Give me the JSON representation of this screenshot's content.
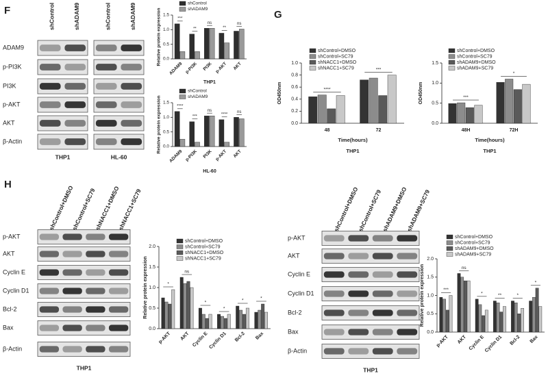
{
  "panel_labels": [
    "F",
    "G",
    "H"
  ],
  "blots": [
    {
      "columns": [
        "shControl",
        "shADAM9",
        "shControl",
        "shADAM9"
      ],
      "rows": [
        "ADAM9",
        "p-PI3K",
        "PI3K",
        "p-AKT",
        "AKT",
        "β-Actin"
      ],
      "cell_lines": [
        "THP1",
        "HL-60"
      ]
    },
    {
      "columns": [
        "shControl+DMSO",
        "shControl+SC79",
        "shNACC1+DMSO",
        "shNACC1+SC79"
      ],
      "rows": [
        "p-AKT",
        "AKT",
        "Cyclin E",
        "Cyclin D1",
        "Bcl-2",
        "Bax",
        "β-Actin"
      ],
      "cell_lines": [
        "THP1"
      ]
    },
    {
      "columns": [
        "shControl+DMSO",
        "shControl+SC79",
        "shADAM9+DMSO",
        "shADAM9+SC79"
      ],
      "rows": [
        "p-AKT",
        "AKT",
        "Cyclin E",
        "Cyclin D1",
        "Bcl-2",
        "Bax",
        "β-Actin"
      ],
      "cell_lines": [
        "THP1"
      ]
    }
  ],
  "chart_data": [
    {
      "type": "bar",
      "title": "THP1",
      "y_label": "Relative protein expression",
      "categories": [
        "ADAM9",
        "p-PI3K",
        "PI3K",
        "p-AKT",
        "AKT"
      ],
      "series": [
        {
          "name": "shControl",
          "color": "#2e2e2e",
          "values": [
            1.2,
            0.85,
            1.05,
            0.88,
            0.95
          ]
        },
        {
          "name": "shADAM9",
          "color": "#9a9a9a",
          "values": [
            0.25,
            0.25,
            1.05,
            0.55,
            1.02
          ]
        }
      ],
      "annotations": [
        "***",
        "**",
        "ns",
        "**",
        "ns"
      ],
      "ylim": [
        0,
        1.5
      ],
      "yticks": [
        {
          "value": 0,
          "label": "0.0"
        },
        0.5,
        {
          "value": 1,
          "label": "1.0"
        },
        1.5
      ]
    },
    {
      "type": "bar",
      "title": "HL-60",
      "y_label": "Relative protein expression",
      "categories": [
        "ADAM9",
        "p-PI3K",
        "PI3K",
        "p-AKT",
        "AKT"
      ],
      "series": [
        {
          "name": "shControl",
          "color": "#2e2e2e",
          "values": [
            1.2,
            0.85,
            1.05,
            0.92,
            1.0
          ]
        },
        {
          "name": "shADAM9",
          "color": "#9a9a9a",
          "values": [
            0.25,
            0.15,
            1.05,
            0.15,
            0.95
          ]
        }
      ],
      "annotations": [
        "****",
        "***",
        "ns",
        "****",
        "ns"
      ],
      "ylim": [
        0,
        1.5
      ],
      "yticks": [
        {
          "value": 0,
          "label": "0.0"
        },
        0.5,
        {
          "value": 1,
          "label": "1.0"
        },
        1.5
      ]
    },
    {
      "type": "bar",
      "title": "THP1",
      "y_label": "OD450nm",
      "x_label": "Time(hours)",
      "categories": [
        "48",
        "72"
      ],
      "series": [
        {
          "name": "shControl+DMSO",
          "color": "#333333",
          "values": [
            0.44,
            0.72
          ]
        },
        {
          "name": "shControl+SC79",
          "color": "#8c8c8c",
          "values": [
            0.47,
            0.75
          ]
        },
        {
          "name": "shNACC1+DMSO",
          "color": "#5a5a5a",
          "values": [
            0.24,
            0.46
          ]
        },
        {
          "name": "shNACC1+SC79",
          "color": "#c8c8c8",
          "values": [
            0.46,
            0.8
          ]
        }
      ],
      "annotations": [
        "****",
        "***"
      ],
      "ylim": [
        0,
        1
      ],
      "yticks": [
        {
          "value": 0,
          "label": "0.0"
        },
        0.2,
        0.4,
        0.6,
        0.8,
        {
          "value": 1,
          "label": "1.0"
        }
      ]
    },
    {
      "type": "bar",
      "title": "THP1",
      "y_label": "OD450nm",
      "x_label": "Time(hours)",
      "categories": [
        "48H",
        "72H"
      ],
      "series": [
        {
          "name": "shControl+DMSO",
          "color": "#333333",
          "values": [
            0.49,
            1.02
          ]
        },
        {
          "name": "shControl+SC79",
          "color": "#8c8c8c",
          "values": [
            0.51,
            1.1
          ]
        },
        {
          "name": "shADAM9+DMSO",
          "color": "#5a5a5a",
          "values": [
            0.39,
            0.84
          ]
        },
        {
          "name": "shADAM9+SC79",
          "color": "#c8c8c8",
          "values": [
            0.45,
            0.97
          ]
        }
      ],
      "annotations": [
        "***",
        "*"
      ],
      "ylim": [
        0,
        1.5
      ],
      "yticks": [
        {
          "value": 0,
          "label": "0.0"
        },
        0.5,
        {
          "value": 1,
          "label": "1.0"
        },
        1.5
      ]
    },
    {
      "type": "bar",
      "y_label": "Relative protein expression",
      "categories": [
        "p-AKT",
        "AKT",
        "Cyclin E",
        "Cyclin D1",
        "Bcl-2",
        "Bax"
      ],
      "series": [
        {
          "name": "shControl+DMSO",
          "color": "#333333",
          "values": [
            0.75,
            1.25,
            0.5,
            0.35,
            0.55,
            0.4
          ]
        },
        {
          "name": "shControl+SC79",
          "color": "#8c8c8c",
          "values": [
            0.65,
            1.1,
            0.35,
            0.3,
            0.45,
            0.45
          ]
        },
        {
          "name": "shNACC1+DMSO",
          "color": "#5a5a5a",
          "values": [
            0.6,
            1.15,
            0.25,
            0.25,
            0.35,
            0.6
          ]
        },
        {
          "name": "shNACC1+SC79",
          "color": "#c8c8c8",
          "values": [
            0.95,
            1.0,
            0.35,
            0.35,
            0.5,
            0.4
          ]
        }
      ],
      "annotations": [
        "*",
        "ns",
        "*",
        "*",
        "*",
        "*"
      ],
      "ylim": [
        0,
        2
      ],
      "yticks": [
        {
          "value": 0,
          "label": "0.0"
        },
        0.5,
        {
          "value": 1,
          "label": "1.0"
        },
        1.5,
        {
          "value": 2,
          "label": "2.0"
        }
      ]
    },
    {
      "type": "bar",
      "y_label": "Relative protein expression",
      "categories": [
        "p-AKT",
        "AKT",
        "Cyclin E",
        "Cyclin D1",
        "Bcl-2",
        "Bax"
      ],
      "series": [
        {
          "name": "shControl+DMSO",
          "color": "#333333",
          "values": [
            0.95,
            1.6,
            0.9,
            0.85,
            0.85,
            0.85
          ]
        },
        {
          "name": "shControl+SC79",
          "color": "#8c8c8c",
          "values": [
            0.9,
            1.5,
            0.75,
            0.8,
            0.8,
            0.95
          ]
        },
        {
          "name": "shADAM9+DMSO",
          "color": "#5a5a5a",
          "values": [
            0.6,
            1.4,
            0.45,
            0.55,
            0.5,
            1.2
          ]
        },
        {
          "name": "shADAM9+SC79",
          "color": "#c8c8c8",
          "values": [
            1.0,
            1.4,
            0.6,
            0.7,
            0.65,
            0.7
          ]
        }
      ],
      "annotations": [
        "***",
        "ns",
        "*",
        "**",
        "*",
        "*"
      ],
      "ylim": [
        0,
        2
      ],
      "yticks": [
        {
          "value": 0,
          "label": "0.0"
        },
        0.5,
        {
          "value": 1,
          "label": "1.0"
        },
        1.5,
        {
          "value": 2,
          "label": "2.0"
        }
      ]
    }
  ]
}
